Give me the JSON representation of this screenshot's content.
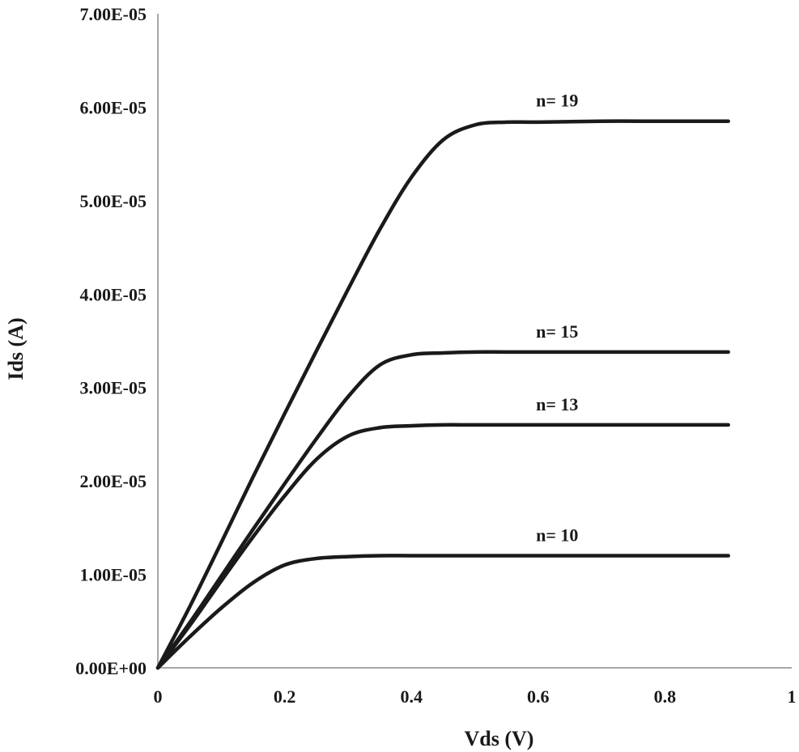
{
  "chart_data": {
    "type": "line",
    "xlabel": "Vds (V)",
    "ylabel": "Ids (A)",
    "xlim": [
      0,
      1
    ],
    "ylim": [
      0,
      7e-05
    ],
    "x_ticks": [
      0,
      0.2,
      0.4,
      0.6,
      0.8,
      1
    ],
    "x_tick_labels": [
      "0",
      "0.2",
      "0.4",
      "0.6",
      "0.8",
      "1"
    ],
    "y_ticks": [
      0,
      1e-05,
      2e-05,
      3e-05,
      4e-05,
      5e-05,
      6e-05,
      7e-05
    ],
    "y_tick_labels": [
      "0.00E+00",
      "1.00E-05",
      "2.00E-05",
      "3.00E-05",
      "4.00E-05",
      "5.00E-05",
      "6.00E-05",
      "7.00E-05"
    ],
    "grid": false,
    "legend": "none",
    "series_color": "#1a1a1a",
    "series": [
      {
        "name": "n= 19",
        "x": [
          0,
          0.05,
          0.1,
          0.15,
          0.2,
          0.25,
          0.3,
          0.35,
          0.4,
          0.45,
          0.5,
          0.55,
          0.6,
          0.7,
          0.8,
          0.9
        ],
        "y": [
          0,
          6.5e-06,
          1.34e-05,
          2.04e-05,
          2.72e-05,
          3.39e-05,
          4.05e-05,
          4.69e-05,
          5.25e-05,
          5.65e-05,
          5.81e-05,
          5.84e-05,
          5.84e-05,
          5.85e-05,
          5.85e-05,
          5.85e-05
        ]
      },
      {
        "name": "n= 15",
        "x": [
          0,
          0.05,
          0.1,
          0.15,
          0.2,
          0.25,
          0.3,
          0.35,
          0.4,
          0.45,
          0.5,
          0.55,
          0.6,
          0.7,
          0.8,
          0.9
        ],
        "y": [
          0,
          4.8e-06,
          9.8e-06,
          1.48e-05,
          1.97e-05,
          2.45e-05,
          2.9e-05,
          3.24e-05,
          3.35e-05,
          3.37e-05,
          3.38e-05,
          3.38e-05,
          3.38e-05,
          3.38e-05,
          3.38e-05,
          3.38e-05
        ]
      },
      {
        "name": "n= 13",
        "x": [
          0,
          0.05,
          0.1,
          0.15,
          0.2,
          0.25,
          0.3,
          0.35,
          0.4,
          0.45,
          0.5,
          0.6,
          0.7,
          0.8,
          0.9
        ],
        "y": [
          0,
          4.5e-06,
          9.3e-06,
          1.4e-05,
          1.84e-05,
          2.23e-05,
          2.48e-05,
          2.57e-05,
          2.59e-05,
          2.6e-05,
          2.6e-05,
          2.6e-05,
          2.6e-05,
          2.6e-05,
          2.6e-05
        ]
      },
      {
        "name": "n= 10",
        "x": [
          0,
          0.05,
          0.1,
          0.15,
          0.2,
          0.25,
          0.3,
          0.35,
          0.4,
          0.5,
          0.6,
          0.7,
          0.8,
          0.9
        ],
        "y": [
          0,
          3.3e-06,
          6.4e-06,
          9.1e-06,
          1.1e-05,
          1.17e-05,
          1.19e-05,
          1.2e-05,
          1.2e-05,
          1.2e-05,
          1.2e-05,
          1.2e-05,
          1.2e-05,
          1.2e-05
        ]
      }
    ]
  }
}
